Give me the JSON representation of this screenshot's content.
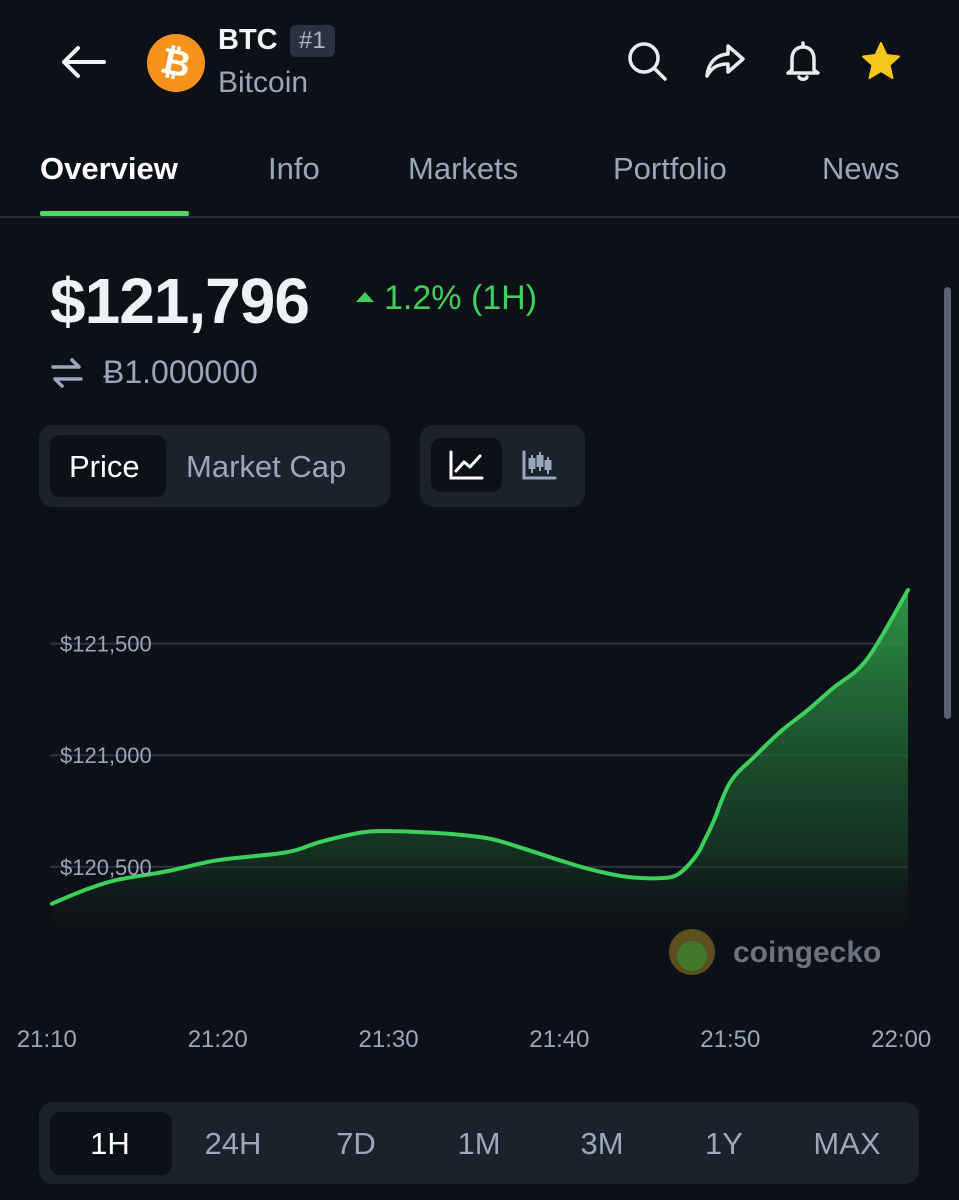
{
  "header": {
    "symbol": "BTC",
    "rank": "#1",
    "name": "Bitcoin",
    "logo_glyph": "₿",
    "icons": [
      "back-arrow-icon",
      "search-icon",
      "share-icon",
      "bell-icon",
      "star-icon"
    ]
  },
  "tabs": [
    {
      "label": "Overview",
      "active": true
    },
    {
      "label": "Info"
    },
    {
      "label": "Markets"
    },
    {
      "label": "Portfolio"
    },
    {
      "label": "News"
    }
  ],
  "price": {
    "value": "$121,796",
    "change": "1.2% (1H)",
    "btc_equivalent": "Ƀ1.000000"
  },
  "metric_toggle": {
    "options": [
      "Price",
      "Market Cap"
    ],
    "selected": "Price"
  },
  "chart_type_toggle": {
    "options": [
      "line-chart-icon",
      "candlestick-icon"
    ],
    "selected": "line-chart-icon"
  },
  "watermark": "coingecko",
  "ranges": [
    "1H",
    "24H",
    "7D",
    "1M",
    "3M",
    "1Y",
    "MAX"
  ],
  "selected_range": "1H",
  "colors": {
    "accent": "#4cd964",
    "line": "#3ccf5c",
    "up": "#3fcf5b",
    "background": "#0d1117",
    "panel": "#1b222c",
    "btc_orange": "#f7931a",
    "star": "#f5c518"
  },
  "chart_data": {
    "type": "area",
    "xlabel": "",
    "ylabel": "",
    "y_tick_labels": [
      "$120,500",
      "$121,000",
      "$121,500"
    ],
    "y_ticks": [
      120500,
      121000,
      121500
    ],
    "x_tick_labels": [
      "21:10",
      "21:20",
      "21:30",
      "21:40",
      "21:50",
      "22:00"
    ],
    "x_ticks": [
      10,
      20,
      30,
      40,
      50,
      60
    ],
    "xlim": [
      10.3,
      60.4
    ],
    "ylim": [
      120195,
      121740
    ],
    "grid": true,
    "series": [
      {
        "x": [
          10.3,
          12,
          14,
          17,
          20,
          24,
          26,
          28.5,
          30,
          32,
          34,
          36,
          38,
          40,
          42,
          44,
          46,
          47,
          48,
          48.5,
          49,
          50,
          51.5,
          53,
          54.5,
          56,
          58,
          60.4
        ],
        "y": [
          120335,
          120390,
          120440,
          120480,
          120530,
          120565,
          120612,
          120655,
          120660,
          120655,
          120645,
          120625,
          120580,
          120530,
          120485,
          120455,
          120450,
          120470,
          120550,
          120620,
          120700,
          120880,
          121000,
          121110,
          121200,
          121300,
          121430,
          121740
        ]
      }
    ]
  }
}
